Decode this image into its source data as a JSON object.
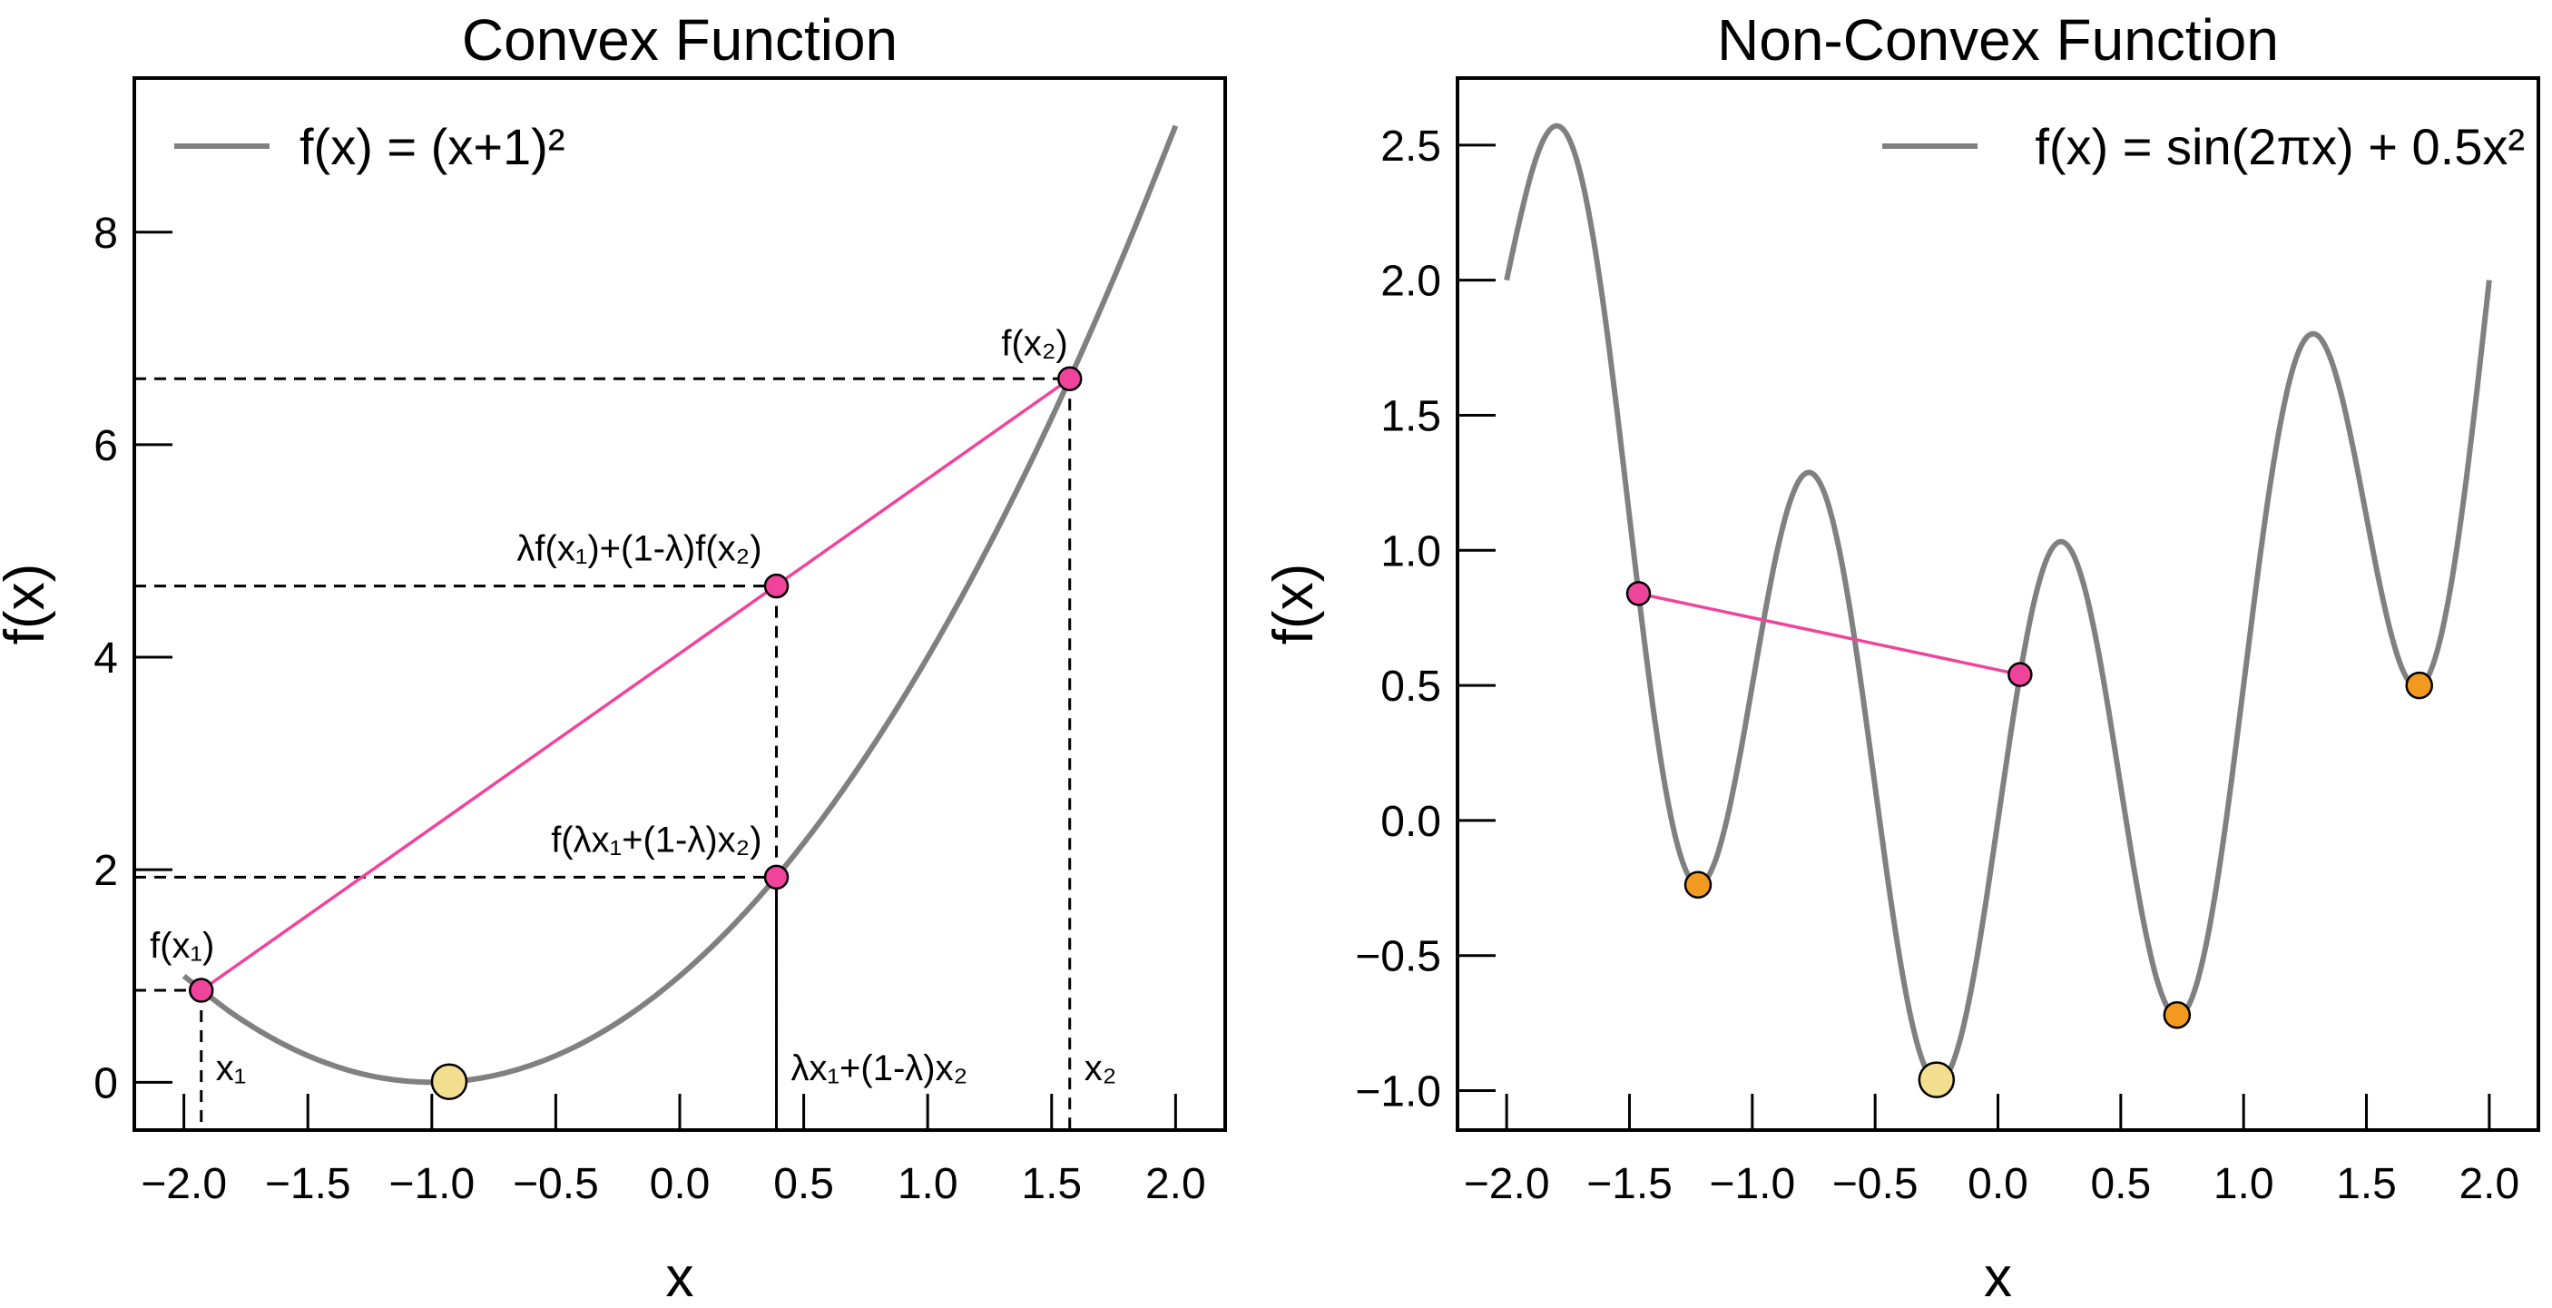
{
  "chart_data": [
    {
      "type": "line",
      "title": "Convex Function",
      "xlabel": "x",
      "ylabel": "f(x)",
      "xlim": [
        -2.2,
        2.2
      ],
      "ylim": [
        -0.45,
        9.45
      ],
      "xticks": [
        "−2.0",
        "−1.5",
        "−1.0",
        "−0.5",
        "0.0",
        "0.5",
        "1.0",
        "1.5",
        "2.0"
      ],
      "xtick_values": [
        -2,
        -1.5,
        -1,
        -0.5,
        0,
        0.5,
        1,
        1.5,
        2
      ],
      "yticks": [
        "0",
        "2",
        "4",
        "6",
        "8"
      ],
      "ytick_values": [
        0,
        2,
        4,
        6,
        8
      ],
      "grid": false,
      "legend": {
        "position": "top-left",
        "label": "f(x) = (x+1)²"
      },
      "series": [
        {
          "name": "f(x) = (x+1)²",
          "color": "#808080",
          "x": [
            -2,
            -1.8,
            -1.6,
            -1.4,
            -1.2,
            -1,
            -0.8,
            -0.6,
            -0.4,
            -0.2,
            0,
            0.2,
            0.4,
            0.6,
            0.8,
            1,
            1.2,
            1.4,
            1.6,
            1.8,
            2
          ],
          "y": [
            1,
            0.64,
            0.36,
            0.16,
            0.04,
            0,
            0.04,
            0.16,
            0.36,
            0.64,
            1,
            1.44,
            1.96,
            2.56,
            3.24,
            4,
            4.84,
            5.76,
            6.76,
            7.84,
            9
          ]
        }
      ],
      "chord": {
        "color": "#f0449c",
        "from": [
          -1.93,
          0.865
        ],
        "to": [
          1.573,
          6.62
        ]
      },
      "points": [
        {
          "x": -1.93,
          "y": 0.865,
          "color": "#f0449c",
          "label": "f(x₁)",
          "xlabel": "x₁"
        },
        {
          "x": 1.573,
          "y": 6.62,
          "color": "#f0449c",
          "label": "f(x₂)",
          "xlabel": "x₂"
        },
        {
          "x": 0.39,
          "y": 4.67,
          "color": "#f0449c",
          "label": "λf(x₁)+(1-λ)f(x₂)"
        },
        {
          "x": 0.39,
          "y": 1.93,
          "color": "#f0449c",
          "label": "f(λx₁+(1-λ)x₂)",
          "xlabel": "λx₁+(1-λ)x₂"
        }
      ],
      "minimum": {
        "x": -0.93,
        "y": 0.005,
        "color": "#f3de8f"
      }
    },
    {
      "type": "line",
      "title": "Non-Convex Function",
      "xlabel": "x",
      "ylabel": "f(x)",
      "xlim": [
        -2.2,
        2.2
      ],
      "ylim": [
        -1.146,
        2.748
      ],
      "xticks": [
        "−2.0",
        "−1.5",
        "−1.0",
        "−0.5",
        "0.0",
        "0.5",
        "1.0",
        "1.5",
        "2.0"
      ],
      "xtick_values": [
        -2,
        -1.5,
        -1,
        -0.5,
        0,
        0.5,
        1,
        1.5,
        2
      ],
      "yticks": [
        "−1.0",
        "−0.5",
        "0.0",
        "0.5",
        "1.0",
        "1.5",
        "2.0",
        "2.5"
      ],
      "ytick_values": [
        -1,
        -0.5,
        0,
        0.5,
        1,
        1.5,
        2,
        2.5
      ],
      "grid": false,
      "legend": {
        "position": "top-right",
        "label": "f(x) = sin(2πx) + 0.5x²"
      },
      "series": [
        {
          "name": "f(x) = sin(2πx) + 0.5x²",
          "color": "#808080",
          "x": [
            -2,
            -1.95,
            -1.9,
            -1.85,
            -1.8,
            -1.75,
            -1.7,
            -1.65,
            -1.6,
            -1.55,
            -1.5,
            -1.45,
            -1.4,
            -1.35,
            -1.3,
            -1.25,
            -1.2,
            -1.15,
            -1.1,
            -1.05,
            -1,
            -0.95,
            -0.9,
            -0.85,
            -0.8,
            -0.75,
            -0.7,
            -0.65,
            -0.6,
            -0.55,
            -0.5,
            -0.45,
            -0.4,
            -0.35,
            -0.3,
            -0.25,
            -0.2,
            -0.15,
            -0.1,
            -0.05,
            0,
            0.05,
            0.1,
            0.15,
            0.2,
            0.25,
            0.3,
            0.35,
            0.4,
            0.45,
            0.5,
            0.55,
            0.6,
            0.65,
            0.7,
            0.75,
            0.8,
            0.85,
            0.9,
            0.95,
            1,
            1.05,
            1.1,
            1.15,
            1.2,
            1.25,
            1.3,
            1.35,
            1.4,
            1.45,
            1.5,
            1.55,
            1.6,
            1.65,
            1.7,
            1.75,
            1.8,
            1.85,
            1.9,
            1.95,
            2
          ],
          "y": [
            2.0,
            2.21,
            2.393,
            2.52,
            2.571,
            2.531,
            2.396,
            2.17,
            1.868,
            1.51,
            1.125,
            0.742,
            0.392,
            0.102,
            -0.106,
            -0.219,
            -0.231,
            -0.148,
            0.017,
            0.242,
            0.5,
            0.76,
            0.993,
            1.17,
            1.271,
            1.281,
            1.196,
            1.02,
            0.768,
            0.46,
            0.125,
            -0.208,
            -0.508,
            -0.748,
            -0.906,
            -0.969,
            -0.931,
            -0.798,
            -0.583,
            -0.308,
            0,
            0.31,
            0.593,
            0.82,
            0.971,
            1.031,
            0.996,
            0.87,
            0.668,
            0.41,
            0.125,
            -0.158,
            -0.408,
            -0.598,
            -0.706,
            -0.719,
            -0.631,
            -0.448,
            -0.183,
            0.142,
            0.5,
            0.86,
            1.193,
            1.47,
            1.671,
            1.781,
            1.796,
            1.72,
            1.568,
            1.36,
            1.125,
            0.892,
            0.692,
            0.552,
            0.494,
            0.531,
            0.669,
            0.902,
            1.217,
            1.592,
            2.0
          ]
        }
      ],
      "chord": {
        "color": "#f0449c",
        "from": [
          -1.463,
          0.84
        ],
        "to": [
          0.09,
          0.54
        ]
      },
      "points": [
        {
          "x": -1.463,
          "y": 0.84,
          "color": "#f0449c"
        },
        {
          "x": 0.09,
          "y": 0.54,
          "color": "#f0449c"
        }
      ],
      "local_minima": [
        {
          "x": -1.221,
          "y": -0.238,
          "color": "#f29a1f"
        },
        {
          "x": 0.729,
          "y": -0.72,
          "color": "#f29a1f"
        },
        {
          "x": 1.715,
          "y": 0.5,
          "color": "#f29a1f"
        }
      ],
      "minimum": {
        "x": -0.25,
        "y": -0.96,
        "color": "#f3de8f"
      }
    }
  ]
}
